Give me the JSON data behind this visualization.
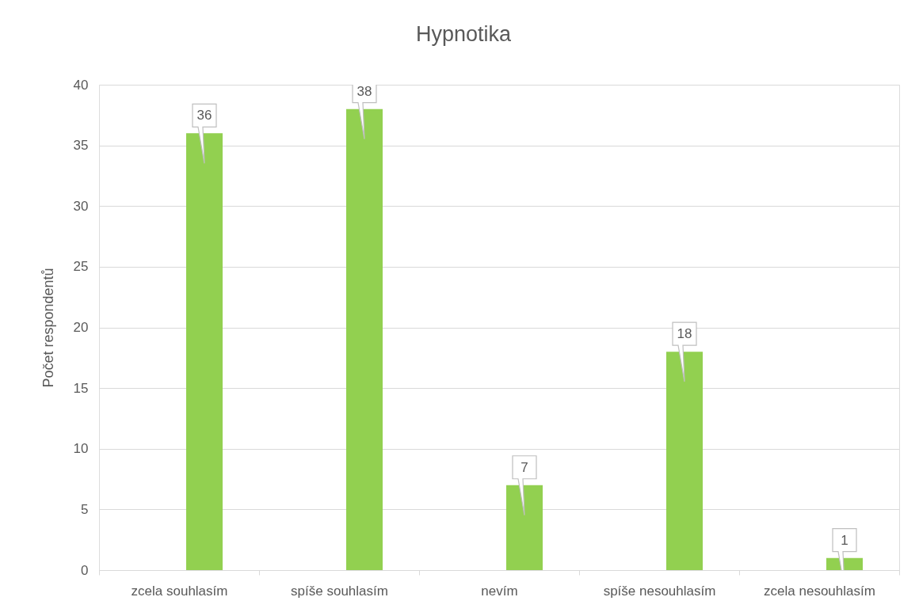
{
  "chart_data": {
    "type": "bar",
    "title": "Hypnotika",
    "ylabel": "Počet respondentů",
    "categories": [
      "zcela souhlasím",
      "spíše souhlasím",
      "nevím",
      "spíše nesouhlasím",
      "zcela nesouhlasím"
    ],
    "values": [
      36,
      38,
      7,
      18,
      1
    ],
    "color": "#92d050",
    "ylim": [
      0,
      40
    ],
    "yticks": [
      0,
      5,
      10,
      15,
      20,
      25,
      30,
      35,
      40
    ],
    "grid": "y",
    "data_labels": true
  }
}
